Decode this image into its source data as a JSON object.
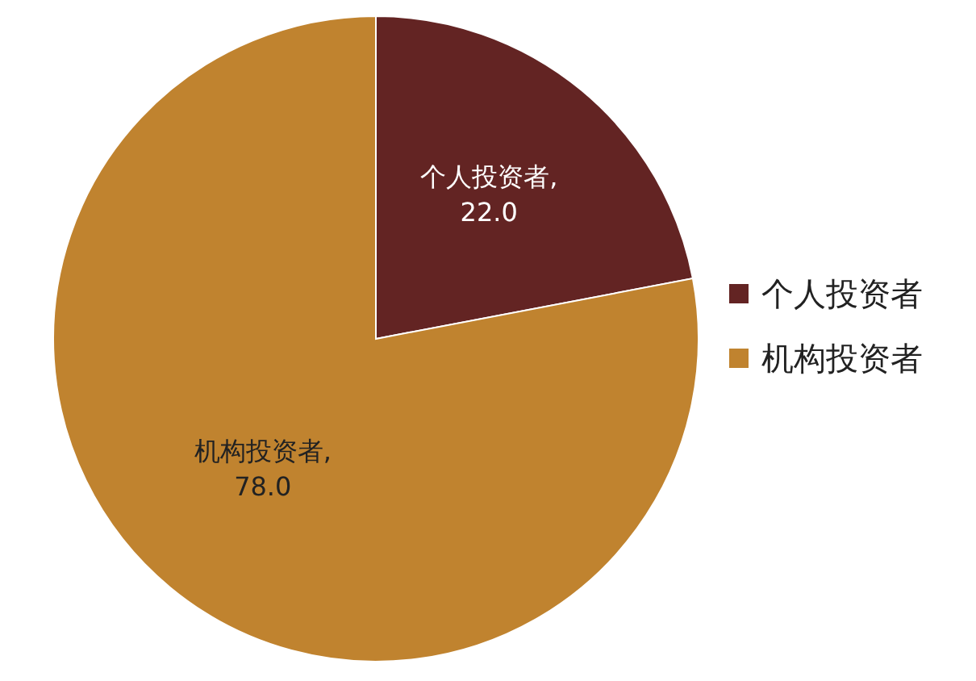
{
  "chart_data": {
    "type": "pie",
    "categories": [
      "个人投资者",
      "机构投资者"
    ],
    "values": [
      22,
      78
    ],
    "colors": [
      "#632423",
      "#c0832f"
    ],
    "value_labels": [
      ",\n22.0",
      ",\n78.0"
    ],
    "legend": "right"
  }
}
